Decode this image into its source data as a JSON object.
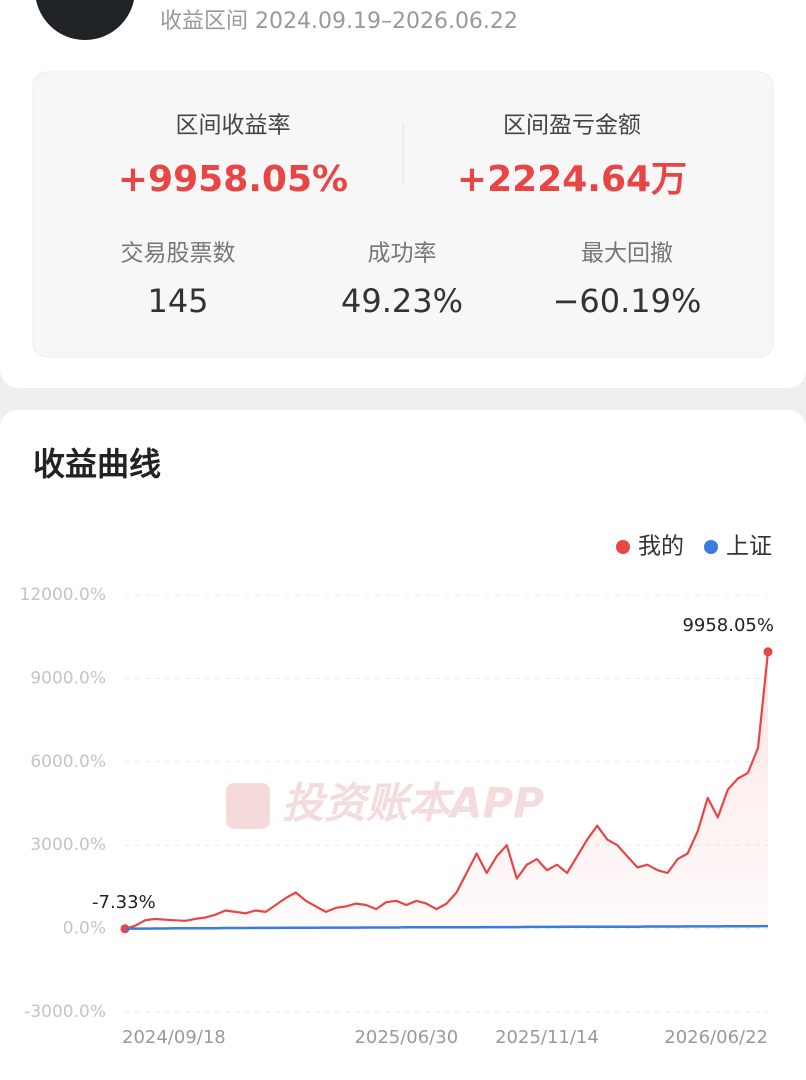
{
  "header": {
    "range_label": "收益区间 2024.09.19–2026.06.22"
  },
  "stats": {
    "primary": [
      {
        "label": "区间收益率",
        "value": "+9958.05%"
      },
      {
        "label": "区间盈亏金额",
        "value": "+2224.64万"
      }
    ],
    "secondary": [
      {
        "label": "交易股票数",
        "value": "145"
      },
      {
        "label": "成功率",
        "value": "49.23%"
      },
      {
        "label": "最大回撤",
        "value": "−60.19%"
      }
    ]
  },
  "section_title": "收益曲线",
  "chart_data": {
    "type": "line",
    "watermark": "投资账本APP",
    "categories": [
      "2024/09/18",
      null,
      null,
      null,
      null,
      null,
      null,
      null,
      null,
      null,
      null,
      null,
      null,
      null,
      null,
      null,
      null,
      null,
      null,
      null,
      null,
      null,
      null,
      null,
      null,
      null,
      null,
      null,
      "2025/06/30",
      null,
      null,
      null,
      null,
      null,
      null,
      null,
      null,
      null,
      null,
      null,
      null,
      null,
      "2025/11/14",
      null,
      null,
      null,
      null,
      null,
      null,
      null,
      null,
      null,
      null,
      null,
      null,
      null,
      null,
      null,
      null,
      null,
      null,
      null,
      null,
      null,
      "2026/06/22"
    ],
    "ylim": [
      -3000,
      12000
    ],
    "yticks": [
      {
        "value": -3000,
        "label": "-3000.0%"
      },
      {
        "value": 0,
        "label": "0.0%"
      },
      {
        "value": 3000,
        "label": "3000.0%"
      },
      {
        "value": 6000,
        "label": "6000.0%"
      },
      {
        "value": 9000,
        "label": "9000.0%"
      },
      {
        "value": 12000,
        "label": "12000.0%"
      }
    ],
    "grid": true,
    "legend": "top-right",
    "series": [
      {
        "name": "我的",
        "color": "#e84545",
        "values": [
          -7.33,
          100,
          300,
          350,
          320,
          300,
          280,
          350,
          400,
          500,
          650,
          600,
          550,
          650,
          600,
          850,
          1100,
          1300,
          1000,
          800,
          600,
          750,
          800,
          900,
          850,
          700,
          950,
          1000,
          850,
          1000,
          900,
          700,
          900,
          1300,
          2000,
          2700,
          2000,
          2600,
          3000,
          1800,
          2300,
          2500,
          2100,
          2300,
          2000,
          2600,
          3200,
          3700,
          3200,
          3000,
          2600,
          2200,
          2300,
          2100,
          2000,
          2500,
          2700,
          3500,
          4700,
          4000,
          5000,
          5400,
          5600,
          6500,
          9958.05
        ],
        "value_labels": [
          "-7.33%",
          null,
          null,
          null,
          null,
          null,
          null,
          null,
          null,
          null,
          null,
          null,
          null,
          null,
          null,
          null,
          null,
          null,
          null,
          null,
          null,
          null,
          null,
          null,
          null,
          null,
          null,
          null,
          null,
          null,
          null,
          null,
          null,
          null,
          null,
          null,
          null,
          null,
          null,
          null,
          null,
          null,
          null,
          null,
          null,
          null,
          null,
          null,
          null,
          null,
          null,
          null,
          null,
          null,
          null,
          null,
          null,
          null,
          null,
          null,
          null,
          null,
          null,
          null,
          "9958.05%"
        ]
      },
      {
        "name": "上证",
        "color": "#3b7be0",
        "values": [
          0,
          0,
          0,
          5,
          5,
          10,
          10,
          10,
          15,
          15,
          20,
          20,
          20,
          25,
          25,
          25,
          30,
          30,
          30,
          30,
          35,
          35,
          35,
          35,
          40,
          40,
          40,
          40,
          45,
          45,
          45,
          45,
          50,
          50,
          50,
          50,
          55,
          55,
          55,
          55,
          60,
          60,
          60,
          60,
          65,
          65,
          65,
          65,
          70,
          70,
          70,
          70,
          75,
          75,
          75,
          75,
          80,
          80,
          80,
          80,
          85,
          85,
          85,
          85,
          90
        ]
      }
    ]
  }
}
